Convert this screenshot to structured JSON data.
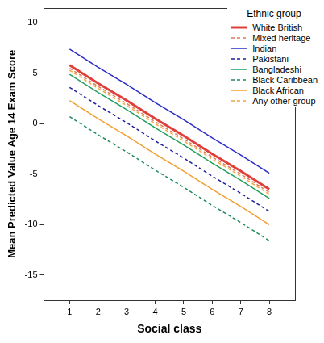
{
  "chart_data": {
    "type": "line",
    "x_label": "Social class",
    "y_label": "Mean Predicted Value Age 14 Exam Score",
    "legend_title": "Ethnic group",
    "x": [
      1,
      2,
      3,
      4,
      5,
      6,
      7,
      8
    ],
    "series": [
      {
        "name": "White British",
        "color": "#e0403a",
        "line_style": "solid",
        "values": [
          5.8,
          4.0,
          2.3,
          0.5,
          -1.2,
          -3.0,
          -4.7,
          -6.5
        ]
      },
      {
        "name": "Mixed heritage",
        "color": "#e07a5a",
        "line_style": "dashed",
        "values": [
          5.5,
          3.7,
          2.0,
          0.2,
          -1.5,
          -3.3,
          -5.0,
          -6.8
        ]
      },
      {
        "name": "Indian",
        "color": "#2a2ac8",
        "line_style": "solid",
        "values": [
          7.4,
          5.6,
          3.9,
          2.1,
          0.4,
          -1.4,
          -3.1,
          -4.9
        ]
      },
      {
        "name": "Pakistani",
        "color": "#1e1ea0",
        "line_style": "dashed",
        "values": [
          3.6,
          1.8,
          0.1,
          -1.7,
          -3.4,
          -5.2,
          -6.9,
          -8.7
        ]
      },
      {
        "name": "Bangladeshi",
        "color": "#22a060",
        "line_style": "solid",
        "values": [
          4.9,
          3.1,
          1.4,
          -0.4,
          -2.1,
          -3.9,
          -5.6,
          -7.4
        ]
      },
      {
        "name": "Black Caribbean",
        "color": "#1e8a58",
        "line_style": "dashed",
        "values": [
          0.7,
          -1.1,
          -2.8,
          -4.6,
          -6.3,
          -8.1,
          -9.8,
          -11.6
        ]
      },
      {
        "name": "Black African",
        "color": "#f0a030",
        "line_style": "solid",
        "values": [
          2.3,
          0.5,
          -1.2,
          -3.0,
          -4.7,
          -6.5,
          -8.2,
          -10.0
        ]
      },
      {
        "name": "Any other group",
        "color": "#f0a840",
        "line_style": "dashed",
        "values": [
          5.3,
          3.5,
          1.8,
          0.0,
          -1.7,
          -3.5,
          -5.2,
          -7.0
        ]
      }
    ],
    "marker": "none",
    "xlim": [
      0.1,
      8.9
    ],
    "xticks": [
      1,
      2,
      3,
      4,
      5,
      6,
      7,
      8
    ],
    "ylim": [
      -17.5,
      11.5
    ],
    "yticks": [
      -15,
      -10,
      -5,
      0,
      5,
      10
    ],
    "grid": false,
    "legend": "top-right"
  }
}
